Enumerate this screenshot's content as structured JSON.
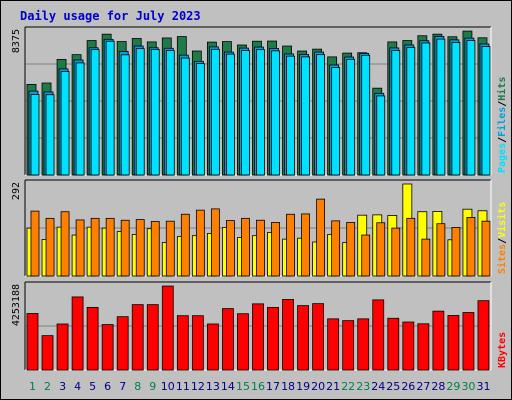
{
  "title": "Daily usage for July 2023",
  "days": [
    "1",
    "2",
    "3",
    "4",
    "5",
    "6",
    "7",
    "8",
    "9",
    "10",
    "11",
    "12",
    "13",
    "14",
    "15",
    "16",
    "17",
    "18",
    "19",
    "20",
    "21",
    "22",
    "23",
    "24",
    "25",
    "26",
    "27",
    "28",
    "29",
    "30",
    "31"
  ],
  "weekend_days": [
    "1",
    "2",
    "8",
    "9",
    "15",
    "16",
    "22",
    "23",
    "29",
    "30"
  ],
  "chart_data": [
    {
      "type": "bar",
      "panel": "hits-files-pages",
      "max_label": "8375",
      "ylim": [
        0,
        8375
      ],
      "side_labels": [
        "Pages",
        "Files",
        "Hits"
      ],
      "series": [
        {
          "name": "Hits",
          "color": "#1f7a4a",
          "values": [
            5270,
            5350,
            6720,
            7000,
            7820,
            8190,
            7760,
            7940,
            7740,
            7970,
            8050,
            7210,
            7730,
            7760,
            7560,
            7780,
            7790,
            7500,
            7210,
            7320,
            6870,
            7090,
            7110,
            5050,
            7740,
            7820,
            8100,
            8190,
            8040,
            8370,
            7980
          ]
        },
        {
          "name": "Files",
          "color": "#00a0e0",
          "values": [
            4880,
            4830,
            6170,
            6690,
            7400,
            7890,
            7190,
            7500,
            7400,
            7370,
            6970,
            6610,
            7450,
            7150,
            7380,
            7440,
            7360,
            7040,
            7010,
            7150,
            6400,
            6860,
            7070,
            4750,
            7390,
            7560,
            7810,
            8060,
            7860,
            7960,
            7620
          ]
        },
        {
          "name": "Pages",
          "color": "#00e0ff",
          "values": [
            4680,
            4670,
            6020,
            6520,
            7290,
            7780,
            6990,
            7350,
            7300,
            7240,
            6800,
            6480,
            7310,
            7030,
            7240,
            7290,
            7220,
            6910,
            6870,
            7000,
            6250,
            6720,
            6960,
            4600,
            7240,
            7410,
            7680,
            7900,
            7710,
            7820,
            7470
          ]
        }
      ]
    },
    {
      "type": "bar",
      "panel": "sites-visits",
      "max_label": "292",
      "ylim": [
        0,
        292
      ],
      "side_labels": [
        "Sites",
        "Visits"
      ],
      "series": [
        {
          "name": "Visits",
          "color": "#ffff00",
          "values": [
            152,
            116,
            155,
            130,
            155,
            152,
            141,
            132,
            150,
            106,
            125,
            128,
            135,
            154,
            122,
            128,
            138,
            117,
            120,
            108,
            132,
            106,
            193,
            194,
            192,
            292,
            204,
            205,
            115,
            212,
            207
          ]
        },
        {
          "name": "Sites",
          "color": "#ff8000",
          "values": [
            206,
            183,
            204,
            178,
            183,
            183,
            177,
            179,
            173,
            174,
            196,
            209,
            213,
            176,
            183,
            177,
            170,
            196,
            197,
            244,
            175,
            170,
            130,
            169,
            152,
            183,
            117,
            166,
            154,
            186,
            174
          ]
        }
      ]
    },
    {
      "type": "bar",
      "panel": "kbytes",
      "max_label": "4253188",
      "ylim": [
        0,
        4253188
      ],
      "side_labels": [
        "KBytes"
      ],
      "series": [
        {
          "name": "KBytes",
          "color": "#ff0000",
          "values": [
            2860000,
            1740000,
            2330000,
            3700000,
            3170000,
            2300000,
            2700000,
            3310000,
            3310000,
            4250000,
            2750000,
            2750000,
            2330000,
            3110000,
            2850000,
            3350000,
            3170000,
            3570000,
            3260000,
            3360000,
            2590000,
            2500000,
            2590000,
            3550000,
            2620000,
            2430000,
            2340000,
            2980000,
            2760000,
            2910000,
            3510000
          ]
        }
      ]
    }
  ]
}
